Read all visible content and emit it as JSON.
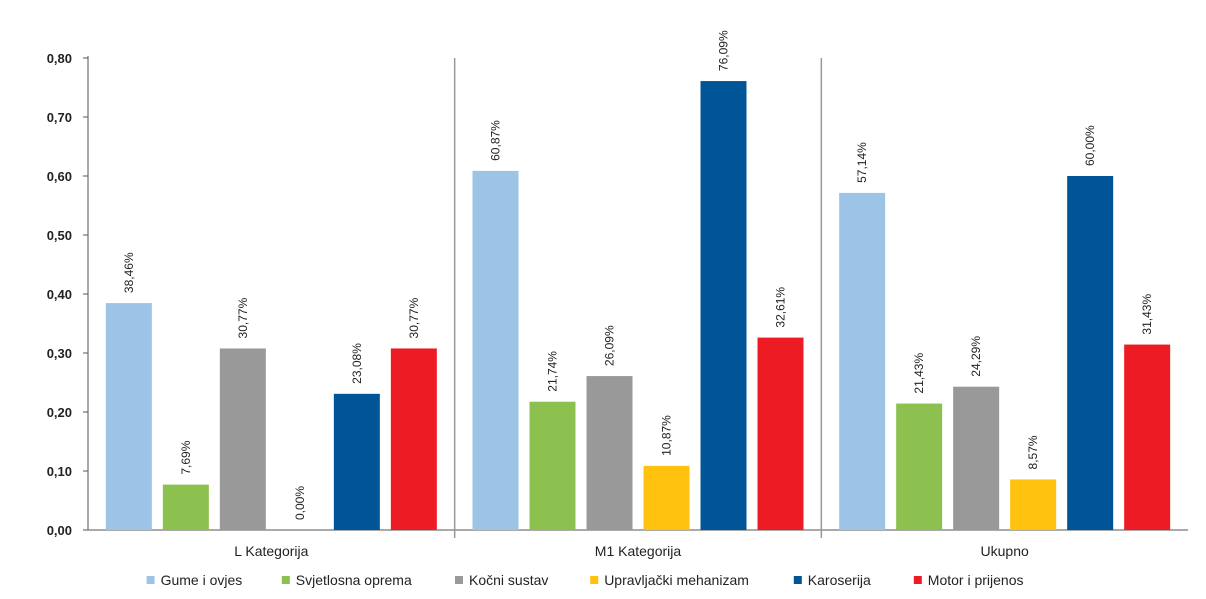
{
  "chart_data": {
    "type": "bar",
    "categories": [
      "L Kategorija",
      "M1 Kategorija",
      "Ukupno"
    ],
    "series": [
      {
        "name": "Gume i ovjes",
        "color": "#9dc3e6",
        "values": [
          0.3846,
          0.6087,
          0.5714
        ],
        "labels": [
          "38,46%",
          "60,87%",
          "57,14%"
        ]
      },
      {
        "name": "Svjetlosna oprema",
        "color": "#8cc04f",
        "values": [
          0.0769,
          0.2174,
          0.2143
        ],
        "labels": [
          "7,69%",
          "21,74%",
          "21,43%"
        ]
      },
      {
        "name": "Kočni sustav",
        "color": "#999999",
        "values": [
          0.3077,
          0.2609,
          0.2429
        ],
        "labels": [
          "30,77%",
          "26,09%",
          "24,29%"
        ]
      },
      {
        "name": "Upravljački mehanizam",
        "color": "#ffc20e",
        "values": [
          0.0,
          0.1087,
          0.0857
        ],
        "labels": [
          "0,00%",
          "10,87%",
          "8,57%"
        ]
      },
      {
        "name": "Karoserija",
        "color": "#005596",
        "values": [
          0.2308,
          0.7609,
          0.6
        ],
        "labels": [
          "23,08%",
          "76,09%",
          "60,00%"
        ]
      },
      {
        "name": "Motor i prijenos",
        "color": "#ed1c24",
        "values": [
          0.3077,
          0.3261,
          0.3143
        ],
        "labels": [
          "30,77%",
          "32,61%",
          "31,43%"
        ]
      }
    ],
    "yticks": [
      "0,00",
      "0,10",
      "0,20",
      "0,30",
      "0,40",
      "0,50",
      "0,60",
      "0,70",
      "0,80"
    ],
    "ylim": [
      0,
      0.8
    ],
    "grid": false,
    "legend_position": "bottom"
  }
}
